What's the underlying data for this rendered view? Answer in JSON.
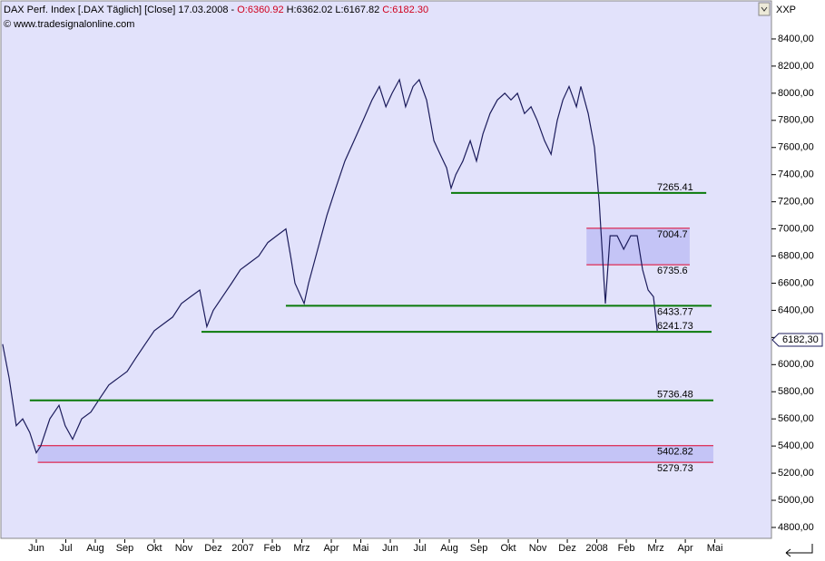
{
  "chart_data": {
    "type": "line",
    "header": {
      "name": "DAX Perf. Index [.DAX  Täglich] [Close] 17.03.2008 - ",
      "open": "O:6360.92",
      "high": "H:6362.02",
      "low": "L:6167.82",
      "close": "C:6182.30"
    },
    "copyright": "© www.tradesignalonline.com",
    "scale_label": "XXP",
    "series": [
      {
        "name": "DAX",
        "color": "#1c1c5c",
        "x": [
          -1.14,
          -0.92,
          -0.68,
          -0.46,
          -0.22,
          0,
          0.15,
          0.46,
          0.77,
          0.98,
          1.23,
          1.54,
          1.85,
          2.15,
          2.46,
          2.77,
          3.08,
          3.38,
          3.69,
          4,
          4.31,
          4.62,
          4.92,
          5.23,
          5.54,
          5.78,
          6,
          6.31,
          6.62,
          6.92,
          7.23,
          7.54,
          7.85,
          8.15,
          8.46,
          8.62,
          8.77,
          9.08,
          9.23,
          9.54,
          9.85,
          10.15,
          10.46,
          10.77,
          11.08,
          11.38,
          11.63,
          11.85,
          12.06,
          12.31,
          12.52,
          12.77,
          12.98,
          13.23,
          13.48,
          13.69,
          13.91,
          14.06,
          14.22,
          14.46,
          14.71,
          14.92,
          15.14,
          15.38,
          15.63,
          15.88,
          16.09,
          16.31,
          16.55,
          16.77,
          16.98,
          17.23,
          17.45,
          17.66,
          17.85,
          18.06,
          18.31,
          18.46,
          18.71,
          18.92,
          19.08,
          19.29,
          19.45,
          19.69,
          19.91,
          20.15,
          20.37,
          20.55,
          20.74,
          20.92,
          21.05
        ],
        "values": [
          6150,
          5900,
          5550,
          5600,
          5500,
          5350,
          5400,
          5600,
          5700,
          5550,
          5450,
          5600,
          5650,
          5750,
          5850,
          5900,
          5950,
          6050,
          6150,
          6250,
          6300,
          6350,
          6450,
          6500,
          6550,
          6280,
          6400,
          6500,
          6600,
          6700,
          6750,
          6800,
          6900,
          6950,
          7000,
          6800,
          6600,
          6450,
          6600,
          6850,
          7100,
          7300,
          7500,
          7650,
          7800,
          7950,
          8050,
          7900,
          8000,
          8100,
          7900,
          8050,
          8100,
          7950,
          7650,
          7550,
          7450,
          7300,
          7400,
          7500,
          7650,
          7500,
          7700,
          7850,
          7950,
          8000,
          7950,
          8000,
          7850,
          7900,
          7800,
          7650,
          7550,
          7800,
          7950,
          8050,
          7900,
          8050,
          7850,
          7600,
          7200,
          6450,
          6950,
          6950,
          6850,
          6950,
          6950,
          6700,
          6550,
          6500,
          6250
        ]
      }
    ],
    "last_price": {
      "value": 6182.3,
      "label": "6182,30"
    },
    "level_color": "#0a7a0a",
    "levels": [
      {
        "value": 7265.41,
        "x": [
          14.06,
          22.71
        ]
      },
      {
        "value": 6433.77,
        "x": [
          8.46,
          22.89
        ]
      },
      {
        "value": 6241.73,
        "x": [
          5.6,
          22.89
        ]
      },
      {
        "value": 5736.48,
        "x": [
          -0.22,
          22.95
        ]
      }
    ],
    "zone_color": "#e0002a",
    "zones": [
      {
        "top": 7004.7,
        "bottom": 6735.6,
        "x": [
          18.65,
          22.15
        ]
      },
      {
        "top": 5402.82,
        "bottom": 5279.73,
        "x": [
          0.05,
          22.95
        ]
      }
    ],
    "xlim": [
      -1.23,
      24.92
    ],
    "xticks": [
      {
        "value": 0,
        "label": "Jun"
      },
      {
        "value": 1,
        "label": "Jul"
      },
      {
        "value": 2,
        "label": "Aug"
      },
      {
        "value": 3,
        "label": "Sep"
      },
      {
        "value": 4,
        "label": "Okt"
      },
      {
        "value": 5,
        "label": "Nov"
      },
      {
        "value": 6,
        "label": "Dez"
      },
      {
        "value": 7,
        "label": "2007"
      },
      {
        "value": 8,
        "label": "Feb"
      },
      {
        "value": 9,
        "label": "Mrz"
      },
      {
        "value": 10,
        "label": "Apr"
      },
      {
        "value": 11,
        "label": "Mai"
      },
      {
        "value": 12,
        "label": "Jun"
      },
      {
        "value": 13,
        "label": "Jul"
      },
      {
        "value": 14,
        "label": "Aug"
      },
      {
        "value": 15,
        "label": "Sep"
      },
      {
        "value": 16,
        "label": "Okt"
      },
      {
        "value": 17,
        "label": "Nov"
      },
      {
        "value": 18,
        "label": "Dez"
      },
      {
        "value": 19,
        "label": "2008"
      },
      {
        "value": 20,
        "label": "Feb"
      },
      {
        "value": 21,
        "label": "Mrz"
      },
      {
        "value": 22,
        "label": "Apr"
      },
      {
        "value": 23,
        "label": "Mai"
      }
    ],
    "ylim": [
      4713,
      8687
    ],
    "yticks": [
      {
        "value": 4800,
        "label": "4800,00"
      },
      {
        "value": 5000,
        "label": "5000,00"
      },
      {
        "value": 5200,
        "label": "5200,00"
      },
      {
        "value": 5400,
        "label": "5400,00"
      },
      {
        "value": 5600,
        "label": "5600,00"
      },
      {
        "value": 5800,
        "label": "5800,00"
      },
      {
        "value": 6000,
        "label": "6000,00"
      },
      {
        "value": 6200,
        "label": "6200,00"
      },
      {
        "value": 6400,
        "label": "6400,00"
      },
      {
        "value": 6600,
        "label": "6600,00"
      },
      {
        "value": 6800,
        "label": "6800,00"
      },
      {
        "value": 7000,
        "label": "7000,00"
      },
      {
        "value": 7200,
        "label": "7200,00"
      },
      {
        "value": 7400,
        "label": "7400,00"
      },
      {
        "value": 7600,
        "label": "7600,00"
      },
      {
        "value": 7800,
        "label": "7800,00"
      },
      {
        "value": 8000,
        "label": "8000,00"
      },
      {
        "value": 8200,
        "label": "8200,00"
      },
      {
        "value": 8400,
        "label": "8400,00"
      }
    ]
  }
}
